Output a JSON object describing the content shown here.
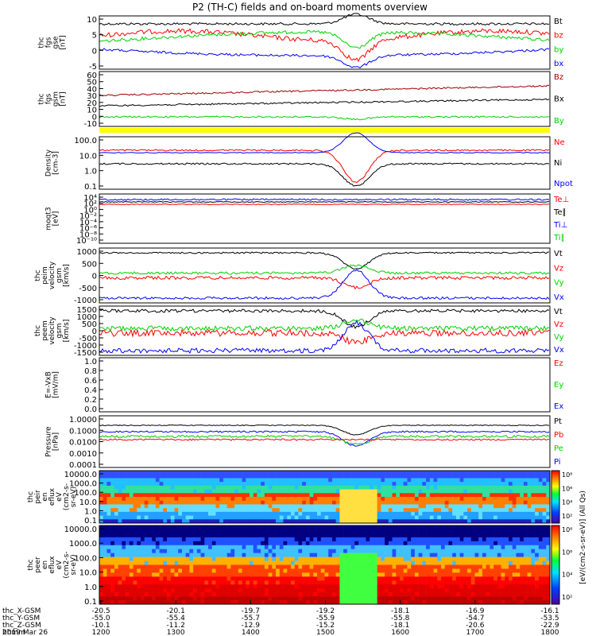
{
  "title": "P2 (TH-C) fields and on-board moments overview",
  "colors": {
    "black": "#000000",
    "red": "#ff0000",
    "green": "#00d000",
    "blue": "#0000ff",
    "brown": "#a00000",
    "yellow": "#ffff00"
  },
  "panels": [
    {
      "id": "fgs-gse",
      "ylabel": [
        "thc",
        "fgs",
        "gse",
        "[nT]"
      ],
      "ticks": [
        "10",
        "5",
        "0",
        "-5"
      ],
      "legend": [
        {
          "text": "Bt",
          "color": "black"
        },
        {
          "text": "bz",
          "color": "red"
        },
        {
          "text": "by",
          "color": "green"
        },
        {
          "text": "bx",
          "color": "blue"
        }
      ]
    },
    {
      "id": "fgs-gsm",
      "ylabel": [
        "thc",
        "fgs",
        "gsm",
        "[nT]"
      ],
      "ticks": [
        "60",
        "50",
        "40",
        "30",
        "20",
        "10",
        "0",
        "-10"
      ],
      "legend": [
        {
          "text": "Bz",
          "color": "brown"
        },
        {
          "text": "Bx",
          "color": "black"
        },
        {
          "text": "By",
          "color": "green"
        }
      ]
    },
    {
      "id": "density",
      "ylabel": [
        "Density",
        "[cm-3]"
      ],
      "ticks": [
        "100.0",
        "10.0",
        "1.0",
        "0.1"
      ],
      "legend": [
        {
          "text": "Ne",
          "color": "red"
        },
        {
          "text": "Ni",
          "color": "black"
        },
        {
          "text": "Npot",
          "color": "blue"
        }
      ]
    },
    {
      "id": "temp",
      "ylabel": [
        "moqt3",
        "[eV]"
      ],
      "ticks": [
        "10⁴",
        "10²",
        "10⁰",
        "10⁻²",
        "10⁻⁴",
        "10⁻⁶",
        "10⁻⁸",
        "10⁻¹⁰"
      ],
      "legend": [
        {
          "text": "Te⊥",
          "color": "red"
        },
        {
          "text": "Te∥",
          "color": "black"
        },
        {
          "text": "Ti⊥",
          "color": "blue"
        },
        {
          "text": "Ti∥",
          "color": "green"
        }
      ]
    },
    {
      "id": "peim",
      "ylabel": [
        "thc",
        "peim",
        "velocity",
        "gsm",
        "[km/s]"
      ],
      "ticks": [
        "1000",
        "500",
        "0",
        "-500",
        "-1000"
      ],
      "legend": [
        {
          "text": "Vt",
          "color": "black"
        },
        {
          "text": "Vz",
          "color": "red"
        },
        {
          "text": "Vy",
          "color": "green"
        },
        {
          "text": "Vx",
          "color": "blue"
        }
      ]
    },
    {
      "id": "peem",
      "ylabel": [
        "thc",
        "peem",
        "velocity",
        "gsm",
        "[km/s]"
      ],
      "ticks": [
        "1500",
        "1000",
        "500",
        "0",
        "-500",
        "-1000",
        "-1500"
      ],
      "legend": [
        {
          "text": "Vt",
          "color": "black"
        },
        {
          "text": "Vz",
          "color": "red"
        },
        {
          "text": "Vy",
          "color": "green"
        },
        {
          "text": "Vx",
          "color": "blue"
        }
      ]
    },
    {
      "id": "efield",
      "ylabel": [
        "E=-VxB",
        "[mV/m]"
      ],
      "ticks": [
        "1.0",
        "0.8",
        "0.6",
        "0.4",
        "0.2",
        "0.0"
      ],
      "legend": [
        {
          "text": "Ez",
          "color": "red"
        },
        {
          "text": "Ey",
          "color": "green"
        },
        {
          "text": "Ex",
          "color": "blue"
        }
      ]
    },
    {
      "id": "pressure",
      "ylabel": [
        "Pressure",
        "[nPa]"
      ],
      "ticks": [
        "1.0000",
        "0.1000",
        "0.0100",
        "0.0010",
        "0.0001"
      ],
      "legend": [
        {
          "text": "Pt",
          "color": "black"
        },
        {
          "text": "Pb",
          "color": "red"
        },
        {
          "text": "Pe",
          "color": "green"
        },
        {
          "text": "Pi",
          "color": "blue"
        }
      ]
    },
    {
      "id": "peir",
      "ylabel": [
        "thc",
        "peir",
        "en",
        "eflux",
        "eV",
        "(cm2-s-",
        "sr-eV)"
      ],
      "ticks": [
        "10000.0",
        "1000.0",
        "100.0",
        "10.0",
        "1.0",
        "0.1"
      ],
      "legend": []
    },
    {
      "id": "peer",
      "ylabel": [
        "thc",
        "peer",
        "en",
        "eflux",
        "eV",
        "(cm2-s-",
        "sr-eV)"
      ],
      "ticks": [
        "10000.0",
        "1000.0",
        "100.0",
        "10.0",
        "1.0",
        "0.1"
      ],
      "legend": []
    }
  ],
  "colorbar": {
    "ticks": [
      "10⁸",
      "10⁶",
      "10⁴",
      "10²"
    ],
    "label": "[eV/(cm2-s-sr-eV)] (All Qs)"
  },
  "axis": {
    "rows": [
      {
        "label": "thc_X-GSM",
        "values": [
          "-20.5",
          "-20.1",
          "-19.7",
          "-19.2",
          "-18.1",
          "-16.9",
          "-16.1"
        ]
      },
      {
        "label": "thc_Y-GSM",
        "values": [
          "-55.0",
          "-55.4",
          "-55.7",
          "-55.9",
          "-55.8",
          "-54.7",
          "-53.5"
        ]
      },
      {
        "label": "thc_Z-GSM",
        "values": [
          "-10.1",
          "-11.2",
          "-12.9",
          "-15.2",
          "-18.1",
          "-20.6",
          "-22.9"
        ]
      },
      {
        "label": "hhmm",
        "values": [
          "1200",
          "1300",
          "1400",
          "1500",
          "1600",
          "1700",
          "1800"
        ]
      }
    ],
    "date": "2019 Mar 26"
  },
  "chart_data": {
    "type": "line",
    "title": "P2 (TH-C) fields and on-board moments overview",
    "x": [
      "1200",
      "1300",
      "1400",
      "1500",
      "1600",
      "1700",
      "1800"
    ],
    "xlabel": "hhmm",
    "series": [
      {
        "name": "Bt",
        "values": [
          8,
          8,
          7.5,
          8,
          7,
          8,
          8
        ]
      },
      {
        "name": "bz",
        "values": [
          3,
          6,
          3,
          5,
          -4,
          5,
          4
        ]
      },
      {
        "name": "by",
        "values": [
          0,
          2,
          4,
          3,
          -5,
          2,
          0
        ]
      },
      {
        "name": "bx",
        "values": [
          -1,
          -2,
          -3,
          -4,
          -5,
          -2,
          -1
        ]
      },
      {
        "name": "Bz",
        "values": [
          30,
          33,
          38,
          40,
          45,
          48,
          50
        ]
      },
      {
        "name": "Ne",
        "values": [
          15,
          15,
          15,
          12,
          0.1,
          15,
          15
        ]
      },
      {
        "name": "Ni",
        "values": [
          2,
          2,
          2,
          1.8,
          0.1,
          1.5,
          1.5
        ]
      },
      {
        "name": "Pt",
        "values": [
          0.55,
          0.5,
          0.5,
          0.45,
          0.08,
          0.5,
          0.5
        ]
      }
    ]
  }
}
